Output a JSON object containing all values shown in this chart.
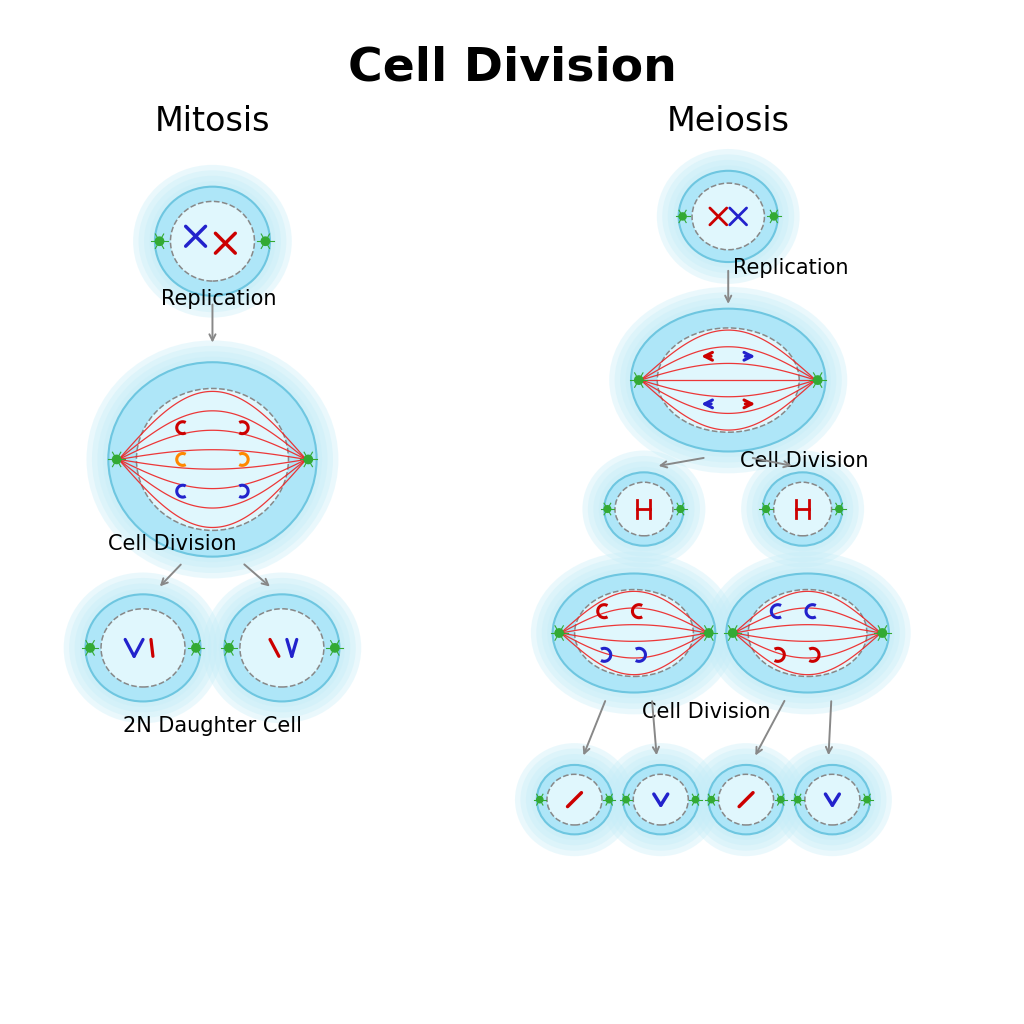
{
  "title": "Cell Division",
  "title_fontsize": 34,
  "title_fontweight": "bold",
  "mitosis_label": "Mitosis",
  "meiosis_label": "Meiosis",
  "section_fontsize": 24,
  "replication_label": "Replication",
  "cell_division_label": "Cell Division",
  "daughter_label": "2N Daughter Cell",
  "annotation_fontsize": 15,
  "bg_color": "#ffffff",
  "cell_fill": "#aee6f8",
  "cell_glow": "#caf0fb",
  "cell_edge": "#6ec6e0",
  "nucleus_fill": "#e0f7fd",
  "nucleus_edge": "#555555",
  "spindle_color": "#ee2222",
  "chrom_red": "#cc0000",
  "chrom_blue": "#2222cc",
  "chrom_orange": "#ff8800",
  "centriole_color": "#33aa33",
  "arrow_color": "#888888"
}
